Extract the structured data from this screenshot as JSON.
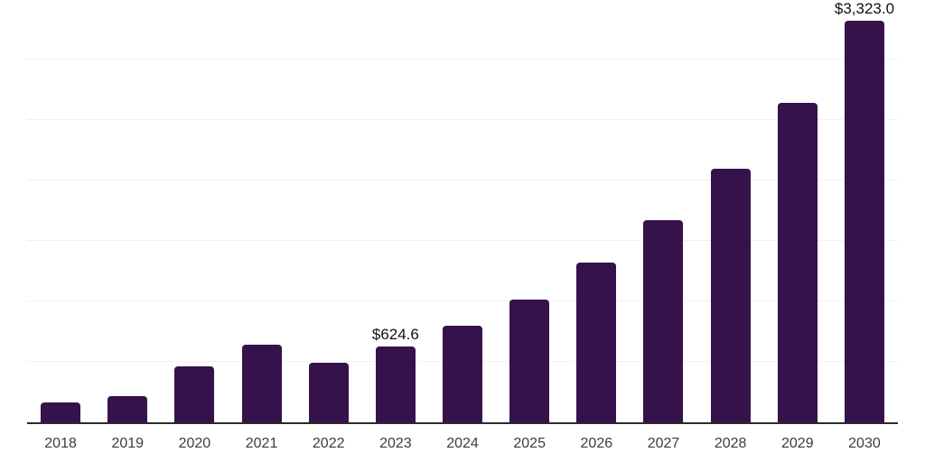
{
  "chart_data": {
    "type": "bar",
    "title": "",
    "xlabel": "",
    "ylabel": "",
    "categories": [
      "2018",
      "2019",
      "2020",
      "2021",
      "2022",
      "2023",
      "2024",
      "2025",
      "2026",
      "2027",
      "2028",
      "2029",
      "2030"
    ],
    "values": [
      165,
      215,
      460,
      640,
      490,
      624.6,
      800,
      1015,
      1320,
      1670,
      2100,
      2645,
      3323
    ],
    "ylim": [
      0,
      3500
    ],
    "gridline_step": 500,
    "grid": true,
    "legend": "none",
    "data_labels": {
      "2023": "$624.6",
      "2030": "$3,323.0"
    }
  },
  "style": {
    "bar_color": "#35124b",
    "gridline_color": "#f1f1f1",
    "axis_color": "#2b2b2b",
    "tick_label_color": "#3d3d3d",
    "data_label_color": "#111111",
    "background": "#ffffff"
  }
}
